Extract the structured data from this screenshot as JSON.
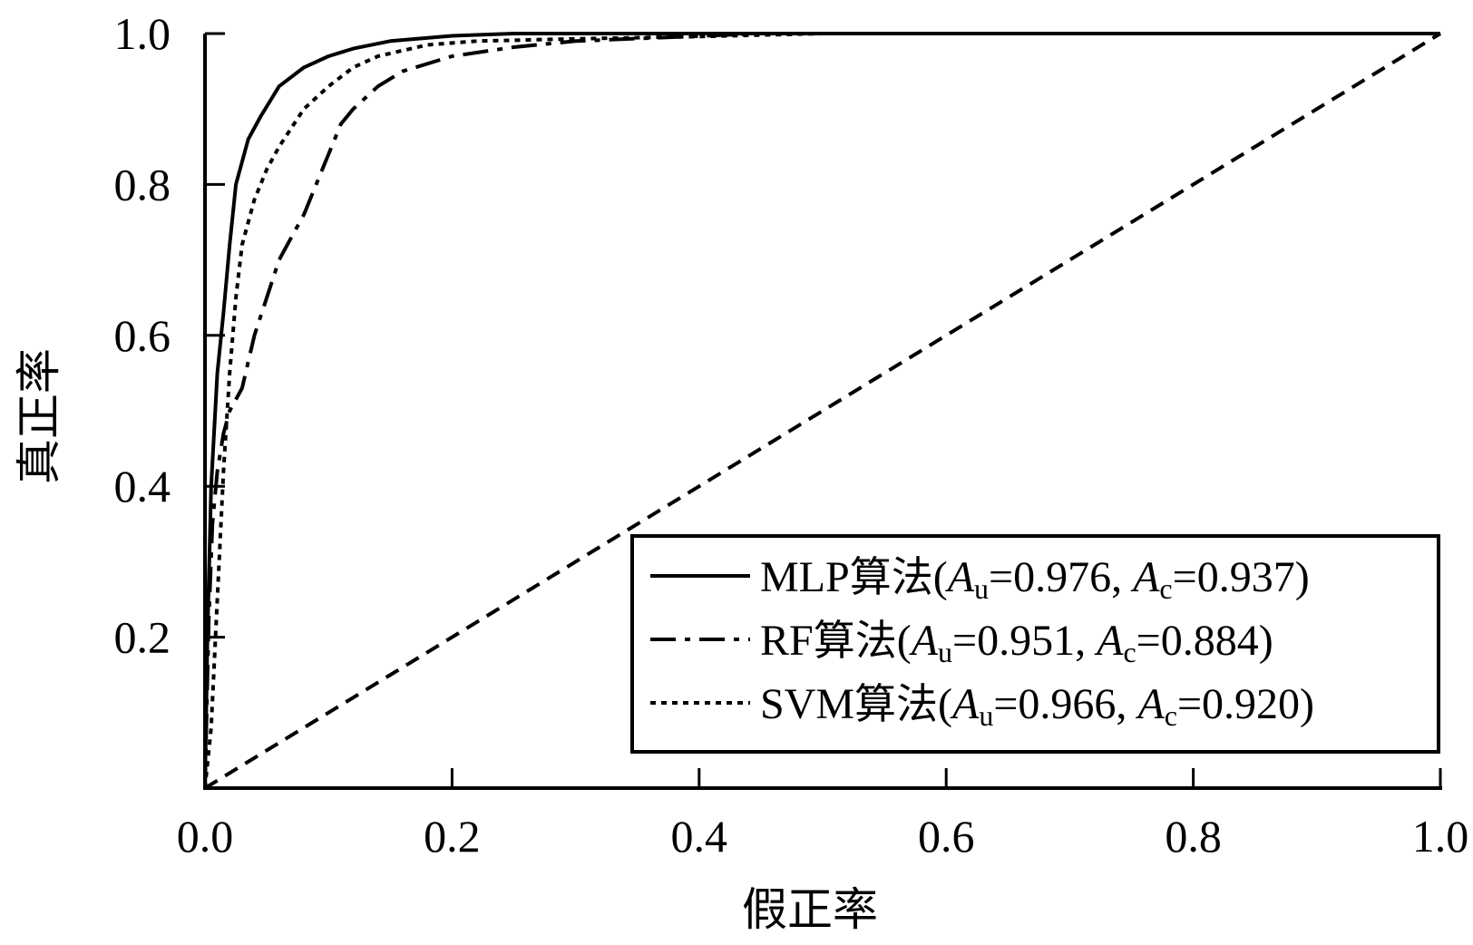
{
  "chart_data": {
    "type": "line",
    "title": "",
    "xlabel": "假正率",
    "ylabel": "真正率",
    "xlim": [
      0.0,
      1.0
    ],
    "ylim": [
      0.0,
      1.0
    ],
    "x_ticks": [
      "0.0",
      "0.2",
      "0.4",
      "0.6",
      "0.8",
      "1.0"
    ],
    "y_ticks": [
      "0.2",
      "0.4",
      "0.6",
      "0.8",
      "1.0"
    ],
    "grid": false,
    "legend_position": "bottom-right",
    "series": [
      {
        "name": "MLP算法",
        "name_model": "MLP",
        "name_cjk": "算法",
        "au": "0.976",
        "ac": "0.937",
        "style": "solid",
        "color": "#000000",
        "x": [
          0.0,
          0.002,
          0.005,
          0.01,
          0.015,
          0.02,
          0.025,
          0.03,
          0.035,
          0.045,
          0.06,
          0.08,
          0.1,
          0.12,
          0.15,
          0.2,
          0.25,
          0.3,
          0.5,
          1.0
        ],
        "y": [
          0.0,
          0.2,
          0.4,
          0.55,
          0.63,
          0.72,
          0.8,
          0.83,
          0.86,
          0.89,
          0.93,
          0.955,
          0.97,
          0.98,
          0.99,
          0.997,
          1.0,
          1.0,
          1.0,
          1.0
        ]
      },
      {
        "name": "RF算法",
        "name_model": "RF",
        "name_cjk": "算法",
        "au": "0.951",
        "ac": "0.884",
        "style": "dashdot",
        "color": "#000000",
        "x": [
          0.0,
          0.003,
          0.006,
          0.01,
          0.015,
          0.02,
          0.03,
          0.04,
          0.05,
          0.06,
          0.07,
          0.08,
          0.09,
          0.1,
          0.11,
          0.12,
          0.14,
          0.16,
          0.2,
          0.25,
          0.3,
          0.45,
          1.0
        ],
        "y": [
          0.0,
          0.22,
          0.35,
          0.42,
          0.47,
          0.5,
          0.53,
          0.6,
          0.65,
          0.7,
          0.73,
          0.76,
          0.8,
          0.84,
          0.88,
          0.9,
          0.93,
          0.95,
          0.97,
          0.982,
          0.99,
          1.0,
          1.0
        ]
      },
      {
        "name": "SVM算法",
        "name_model": "SVM",
        "name_cjk": "算法",
        "au": "0.966",
        "ac": "0.920",
        "style": "dotted",
        "color": "#000000",
        "x": [
          0.0,
          0.005,
          0.01,
          0.015,
          0.02,
          0.025,
          0.03,
          0.04,
          0.05,
          0.06,
          0.08,
          0.1,
          0.12,
          0.14,
          0.18,
          0.22,
          0.3,
          0.4,
          0.5,
          1.0
        ],
        "y": [
          0.0,
          0.08,
          0.25,
          0.42,
          0.55,
          0.65,
          0.72,
          0.78,
          0.82,
          0.85,
          0.9,
          0.93,
          0.955,
          0.97,
          0.985,
          0.99,
          0.993,
          0.996,
          1.0,
          1.0
        ]
      },
      {
        "name": "",
        "style": "dashed",
        "color": "#000000",
        "x": [
          0.0,
          1.0
        ],
        "y": [
          0.0,
          1.0
        ]
      }
    ],
    "legend_au_symbol": "A",
    "legend_au_sub": "u",
    "legend_ac_symbol": "A",
    "legend_ac_sub": "c"
  }
}
